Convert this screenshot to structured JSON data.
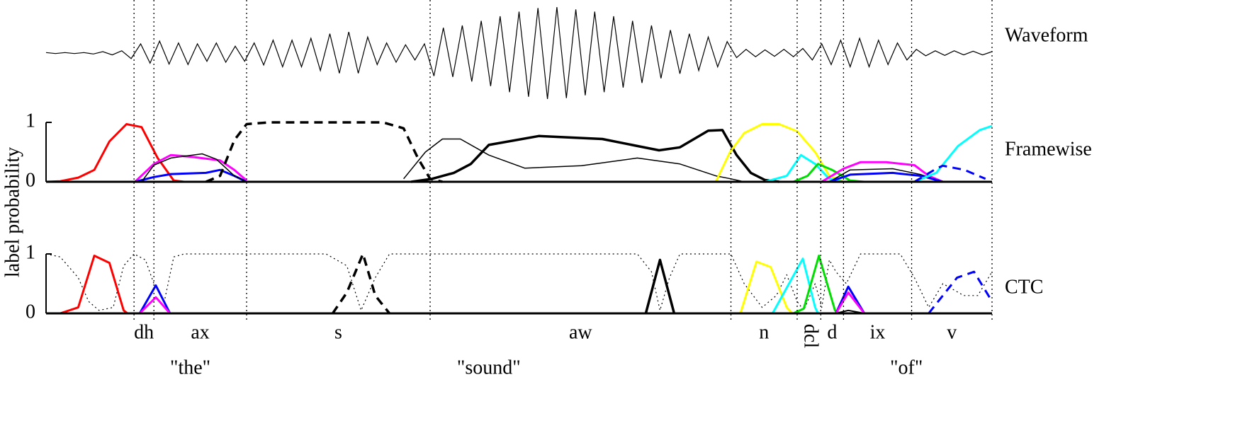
{
  "chart_data": [
    {
      "type": "waveform",
      "label": "Waveform",
      "color": "#000000",
      "xlim": [
        0,
        100
      ],
      "ylim": [
        -1,
        1
      ],
      "x": [
        0,
        1,
        2,
        3,
        4,
        5,
        6,
        7,
        8,
        9,
        10,
        11,
        12,
        13,
        14,
        15,
        16,
        17,
        18,
        19,
        20,
        21,
        22,
        23,
        24,
        25,
        26,
        27,
        28,
        29,
        30,
        31,
        32,
        33,
        34,
        35,
        36,
        37,
        38,
        39,
        40,
        41,
        42,
        43,
        44,
        45,
        46,
        47,
        48,
        49,
        50,
        51,
        52,
        53,
        54,
        55,
        56,
        57,
        58,
        59,
        60,
        61,
        62,
        63,
        64,
        65,
        66,
        67,
        68,
        69,
        70,
        71,
        72,
        73,
        74,
        75,
        76,
        77,
        78,
        79,
        80,
        81,
        82,
        83,
        84,
        85,
        86,
        87,
        88,
        89,
        90,
        91,
        92,
        93,
        94,
        95,
        96,
        97,
        98,
        99,
        100
      ],
      "values": [
        0.01,
        0.01,
        0.01,
        0.01,
        0.01,
        0.02,
        0.03,
        0.04,
        0.05,
        0.12,
        0.2,
        0.22,
        0.26,
        0.24,
        0.22,
        0.25,
        0.2,
        0.18,
        0.22,
        0.2,
        0.15,
        0.18,
        0.22,
        0.26,
        0.28,
        0.3,
        0.28,
        0.3,
        0.32,
        0.38,
        0.42,
        0.44,
        0.46,
        0.44,
        0.35,
        0.25,
        0.22,
        0.2,
        0.18,
        0.15,
        0.2,
        0.5,
        0.55,
        0.52,
        0.6,
        0.62,
        0.7,
        0.72,
        0.8,
        0.85,
        0.9,
        0.95,
        0.98,
        1.0,
        1.0,
        0.98,
        0.95,
        0.92,
        0.9,
        0.85,
        0.8,
        0.75,
        0.7,
        0.65,
        0.6,
        0.55,
        0.5,
        0.45,
        0.42,
        0.38,
        0.35,
        0.3,
        0.25,
        0.1,
        0.08,
        0.08,
        0.07,
        0.07,
        0.08,
        0.08,
        0.1,
        0.15,
        0.2,
        0.25,
        0.28,
        0.3,
        0.32,
        0.3,
        0.28,
        0.25,
        0.22,
        0.15,
        0.08,
        0.06,
        0.05,
        0.05,
        0.05,
        0.04,
        0.04,
        0.04,
        0.03
      ]
    },
    {
      "type": "line",
      "label": "Framewise",
      "ylabel": "label probability",
      "xlim": [
        0,
        100
      ],
      "ylim": [
        0,
        1
      ],
      "yticks": [
        0,
        1
      ],
      "series": [
        {
          "color": "#ff0000",
          "style": "solid",
          "width": 3,
          "x": [
            0,
            1.5,
            3.4,
            5.1,
            6.7,
            8.5,
            10.1,
            11.8,
            13.5,
            14.6
          ],
          "values": [
            0,
            0.01,
            0.07,
            0.2,
            0.68,
            0.97,
            0.92,
            0.4,
            0.02,
            0
          ]
        },
        {
          "color": "#ff00ff",
          "style": "solid",
          "width": 3,
          "x": [
            9.4,
            11.4,
            13.2,
            15.4,
            18.4,
            19.9,
            21.2
          ],
          "values": [
            0,
            0.3,
            0.45,
            0.42,
            0.36,
            0.2,
            0.02
          ]
        },
        {
          "color": "#0000ff",
          "style": "solid",
          "width": 3,
          "x": [
            9.4,
            11.4,
            13.2,
            16.9,
            18.4,
            19.9,
            21.2
          ],
          "values": [
            0,
            0.08,
            0.13,
            0.15,
            0.2,
            0.1,
            0
          ]
        },
        {
          "color": "#000000",
          "style": "solid",
          "width": 1.5,
          "x": [
            10.1,
            11.4,
            13.2,
            16.5,
            18.0,
            19.9,
            21.2
          ],
          "values": [
            0,
            0.28,
            0.4,
            0.47,
            0.38,
            0.1,
            0
          ]
        },
        {
          "color": "#000000",
          "style": "dashed",
          "width": 3.5,
          "x": [
            16.9,
            18.4,
            19.9,
            21.2,
            23.6,
            35.6,
            37.8,
            39.3,
            40.6,
            41.9
          ],
          "values": [
            0,
            0.1,
            0.7,
            0.97,
            1,
            1,
            0.9,
            0.4,
            0.05,
            0
          ]
        },
        {
          "color": "#000000",
          "style": "solid",
          "width": 1.5,
          "x": [
            37.8,
            40.1,
            41.9,
            43.8,
            46.8,
            50.6,
            56.6,
            62.5,
            67.0,
            70.8,
            72.4,
            73.8
          ],
          "values": [
            0.05,
            0.5,
            0.72,
            0.72,
            0.45,
            0.23,
            0.27,
            0.4,
            0.3,
            0.1,
            0.05,
            0
          ]
        },
        {
          "color": "#000000",
          "style": "solid",
          "width": 3.5,
          "x": [
            38.6,
            40.8,
            43.1,
            44.9,
            46.8,
            52.1,
            58.8,
            64.8,
            67.0,
            70.0,
            71.5,
            73.0,
            74.5,
            76.0,
            77.5
          ],
          "values": [
            0,
            0.05,
            0.15,
            0.3,
            0.62,
            0.77,
            0.72,
            0.53,
            0.58,
            0.86,
            0.87,
            0.45,
            0.15,
            0.03,
            0
          ]
        },
        {
          "color": "#ffff00",
          "style": "solid",
          "width": 3,
          "x": [
            70.8,
            72.3,
            73.8,
            75.7,
            77.5,
            79.4,
            81.3,
            82.8,
            84.3
          ],
          "values": [
            0,
            0.5,
            0.82,
            0.97,
            0.97,
            0.85,
            0.5,
            0.1,
            0
          ]
        },
        {
          "color": "#00ffff",
          "style": "solid",
          "width": 3,
          "x": [
            76.0,
            78.3,
            79.8,
            81.3,
            82.8,
            84.3
          ],
          "values": [
            0,
            0.1,
            0.45,
            0.3,
            0.05,
            0
          ]
        },
        {
          "color": "#00dd00",
          "style": "solid",
          "width": 3,
          "x": [
            79.0,
            80.5,
            81.6,
            83.1,
            85.0,
            86.5
          ],
          "values": [
            0,
            0.1,
            0.3,
            0.2,
            0.02,
            0
          ]
        },
        {
          "color": "#ff00ff",
          "style": "solid",
          "width": 3,
          "x": [
            82.0,
            84.3,
            86.1,
            88.8,
            91.8,
            93.3,
            94.8
          ],
          "values": [
            0,
            0.22,
            0.33,
            0.33,
            0.28,
            0.1,
            0
          ]
        },
        {
          "color": "#000000",
          "style": "solid",
          "width": 1.5,
          "x": [
            82.8,
            85.0,
            89.5,
            92.5,
            94.8
          ],
          "values": [
            0,
            0.2,
            0.22,
            0.12,
            0
          ]
        },
        {
          "color": "#0000ff",
          "style": "solid",
          "width": 3,
          "x": [
            82.8,
            85.0,
            89.5,
            92.5,
            94.8
          ],
          "values": [
            0,
            0.12,
            0.15,
            0.1,
            0
          ]
        },
        {
          "color": "#00ffff",
          "style": "solid",
          "width": 3,
          "x": [
            91.8,
            94.1,
            96.4,
            98.7,
            100
          ],
          "values": [
            0,
            0.15,
            0.6,
            0.87,
            0.94
          ]
        },
        {
          "color": "#0000ff",
          "style": "dashed",
          "width": 3,
          "x": [
            91.8,
            94.1,
            94.8,
            97.1,
            99.3
          ],
          "values": [
            0,
            0.22,
            0.27,
            0.2,
            0.05
          ]
        }
      ]
    },
    {
      "type": "line",
      "label": "CTC",
      "xlim": [
        0,
        100
      ],
      "ylim": [
        0,
        1
      ],
      "yticks": [
        0,
        1
      ],
      "series": [
        {
          "color": "#000000",
          "style": "dotted",
          "width": 1.2,
          "x": [
            0,
            1.5,
            3.4,
            4.5,
            5.6,
            7.1,
            8.2,
            9.3,
            10.5,
            11.4,
            12.5,
            13.5,
            14.6,
            29.6,
            31.8,
            33.3,
            34.8,
            36.3,
            62.5,
            64.0,
            64.9,
            65.9,
            67.0,
            72.4,
            73.8,
            75.7,
            77.2,
            78.3,
            79.4,
            80.1,
            81.3,
            82.0,
            82.8,
            83.5,
            84.6,
            86.1,
            90.3,
            91.8,
            93.3,
            94.8,
            97.0,
            98.5,
            100
          ],
          "values": [
            1,
            0.95,
            0.6,
            0.2,
            0.05,
            0.1,
            0.8,
            1,
            0.9,
            0.5,
            0.2,
            0.95,
            1,
            1,
            0.8,
            0.05,
            0.6,
            1,
            1,
            0.7,
            0.05,
            0.6,
            1,
            1,
            0.5,
            0.1,
            0.3,
            0.65,
            0.2,
            0.05,
            0.5,
            0.1,
            0.9,
            0.7,
            0.5,
            1,
            1,
            0.6,
            0.1,
            0.5,
            0.3,
            0.3,
            0.7
          ]
        },
        {
          "color": "#ff0000",
          "style": "solid",
          "width": 3,
          "x": [
            1.5,
            3.4,
            5.1,
            6.7,
            8.2,
            8.6
          ],
          "values": [
            0,
            0.1,
            0.97,
            0.85,
            0.05,
            0
          ]
        },
        {
          "color": "#0000ff",
          "style": "solid",
          "width": 3,
          "x": [
            9.9,
            11.6,
            13.1
          ],
          "values": [
            0,
            0.47,
            0
          ]
        },
        {
          "color": "#ff00ff",
          "style": "solid",
          "width": 3,
          "x": [
            9.9,
            11.6,
            13.1
          ],
          "values": [
            0,
            0.27,
            0
          ]
        },
        {
          "color": "#000000",
          "style": "dashed",
          "width": 3.5,
          "x": [
            30.3,
            31.8,
            33.5,
            34.8,
            36.3
          ],
          "values": [
            0,
            0.35,
            1,
            0.3,
            0
          ]
        },
        {
          "color": "#000000",
          "style": "solid",
          "width": 3.5,
          "x": [
            63.4,
            64.9,
            66.4
          ],
          "values": [
            0,
            0.9,
            0
          ]
        },
        {
          "color": "#ffff00",
          "style": "solid",
          "width": 3,
          "x": [
            73.4,
            75.1,
            76.6,
            78.3,
            78.9
          ],
          "values": [
            0,
            0.87,
            0.78,
            0.1,
            0
          ]
        },
        {
          "color": "#00ffff",
          "style": "solid",
          "width": 3,
          "x": [
            76.8,
            80.0,
            81.3,
            81.6
          ],
          "values": [
            0,
            0.92,
            0.1,
            0
          ]
        },
        {
          "color": "#00dd00",
          "style": "solid",
          "width": 3,
          "x": [
            79.0,
            80.1,
            81.7,
            83.4,
            83.9
          ],
          "values": [
            0,
            0.08,
            0.97,
            0.05,
            0
          ]
        },
        {
          "color": "#0000ff",
          "style": "solid",
          "width": 3,
          "x": [
            83.5,
            84.8,
            86.5
          ],
          "values": [
            0,
            0.45,
            0
          ]
        },
        {
          "color": "#ff00ff",
          "style": "solid",
          "width": 3,
          "x": [
            83.5,
            84.8,
            86.5
          ],
          "values": [
            0,
            0.35,
            0
          ]
        },
        {
          "color": "#000000",
          "style": "solid",
          "width": 2,
          "x": [
            83.5,
            84.8,
            86.5
          ],
          "values": [
            0,
            0.05,
            0
          ]
        },
        {
          "color": "#0000ff",
          "style": "dashed",
          "width": 3,
          "x": [
            93.3,
            96.3,
            98.1,
            100
          ],
          "values": [
            0,
            0.6,
            0.7,
            0.2
          ]
        }
      ]
    }
  ],
  "alignment": {
    "phones": [
      {
        "label": "dh",
        "start": 9.3,
        "end": 11.4
      },
      {
        "label": "ax",
        "start": 11.4,
        "end": 21.2
      },
      {
        "label": "s",
        "start": 21.2,
        "end": 40.6
      },
      {
        "label": "aw",
        "start": 40.6,
        "end": 72.4
      },
      {
        "label": "n",
        "start": 72.4,
        "end": 79.4
      },
      {
        "label": "dcl",
        "start": 79.4,
        "end": 81.9,
        "rotated": true
      },
      {
        "label": "d",
        "start": 81.9,
        "end": 84.3
      },
      {
        "label": "ix",
        "start": 84.3,
        "end": 91.5
      },
      {
        "label": "v",
        "start": 91.5,
        "end": 100
      }
    ],
    "words": [
      {
        "label": "\"the\"",
        "start": 9.3,
        "end": 21.2
      },
      {
        "label": "\"sound\"",
        "start": 21.2,
        "end": 72.4
      },
      {
        "label": "\"of\"",
        "start": 81.9,
        "end": 100
      }
    ]
  }
}
